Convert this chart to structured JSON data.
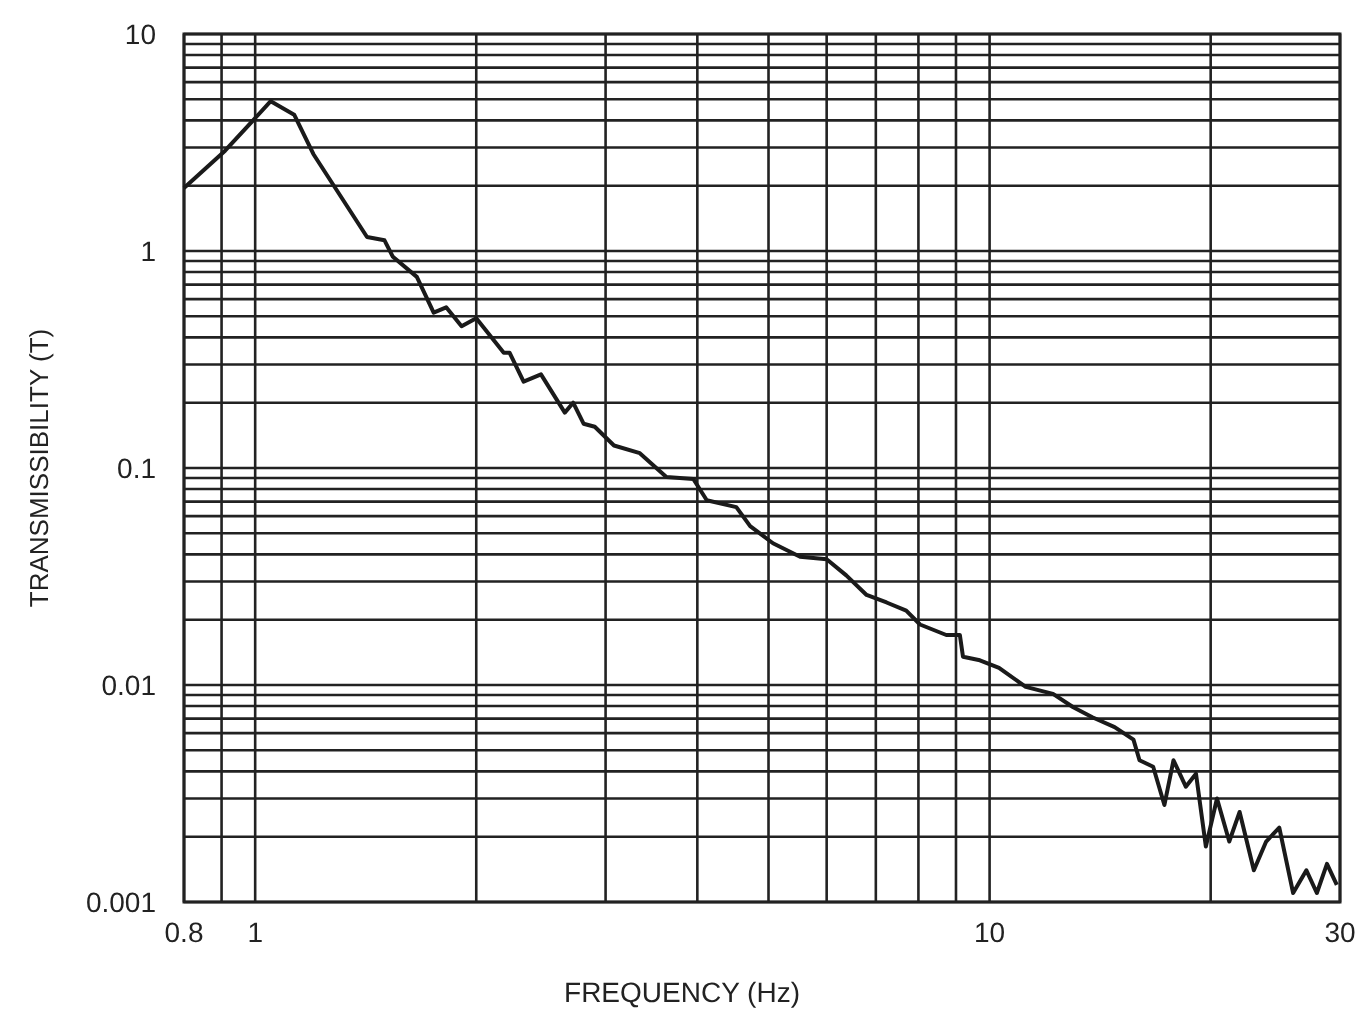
{
  "chart_data": {
    "type": "line",
    "xlabel": "FREQUENCY (Hz)",
    "ylabel": "TRANSMISSIBILITY (T)",
    "log": "xy",
    "grid": true,
    "marker": "none",
    "line_style": "solid",
    "xlim": [
      0.8,
      30
    ],
    "ylim": [
      0.001,
      10
    ],
    "xticks": [
      0.8,
      {
        "value": 0.9,
        "label": null
      },
      1,
      {
        "value": 2,
        "label": null
      },
      {
        "value": 3,
        "label": null
      },
      {
        "value": 4,
        "label": null
      },
      {
        "value": 5,
        "label": null
      },
      {
        "value": 6,
        "label": null
      },
      {
        "value": 7,
        "label": null
      },
      {
        "value": 8,
        "label": null
      },
      {
        "value": 9,
        "label": null
      },
      10,
      {
        "value": 20,
        "label": null
      },
      30
    ],
    "yticks": [
      0.001,
      {
        "value": 0.002,
        "label": null
      },
      {
        "value": 0.003,
        "label": null
      },
      {
        "value": 0.004,
        "label": null
      },
      {
        "value": 0.005,
        "label": null
      },
      {
        "value": 0.006,
        "label": null
      },
      {
        "value": 0.007,
        "label": null
      },
      {
        "value": 0.008,
        "label": null
      },
      {
        "value": 0.009,
        "label": null
      },
      0.01,
      {
        "value": 0.02,
        "label": null
      },
      {
        "value": 0.03,
        "label": null
      },
      {
        "value": 0.04,
        "label": null
      },
      {
        "value": 0.05,
        "label": null
      },
      {
        "value": 0.06,
        "label": null
      },
      {
        "value": 0.07,
        "label": null
      },
      {
        "value": 0.08,
        "label": null
      },
      {
        "value": 0.09,
        "label": null
      },
      0.1,
      {
        "value": 0.2,
        "label": null
      },
      {
        "value": 0.3,
        "label": null
      },
      {
        "value": 0.4,
        "label": null
      },
      {
        "value": 0.5,
        "label": null
      },
      {
        "value": 0.6,
        "label": null
      },
      {
        "value": 0.7,
        "label": null
      },
      {
        "value": 0.8,
        "label": null
      },
      {
        "value": 0.9,
        "label": null
      },
      1,
      {
        "value": 2,
        "label": null
      },
      {
        "value": 3,
        "label": null
      },
      {
        "value": 4,
        "label": null
      },
      {
        "value": 5,
        "label": null
      },
      {
        "value": 6,
        "label": null
      },
      {
        "value": 7,
        "label": null
      },
      {
        "value": 8,
        "label": null
      },
      {
        "value": 9,
        "label": null
      },
      10
    ],
    "series": [
      {
        "color": "#1a1a1a",
        "x": [
          0.8,
          0.91,
          1.05,
          1.13,
          1.2,
          1.42,
          1.5,
          1.54,
          1.66,
          1.75,
          1.82,
          1.91,
          2.0,
          2.18,
          2.22,
          2.32,
          2.45,
          2.64,
          2.71,
          2.8,
          2.9,
          3.08,
          3.34,
          3.63,
          3.95,
          4.12,
          4.52,
          4.72,
          5.07,
          5.52,
          6.0,
          6.38,
          6.8,
          7.24,
          7.7,
          8.04,
          8.73,
          9.11,
          9.2,
          9.7,
          10.3,
          11.2,
          12.2,
          13.0,
          13.8,
          14.8,
          15.7,
          16.0,
          16.7,
          17.3,
          17.8,
          18.5,
          19.1,
          19.7,
          20.4,
          21.2,
          21.9,
          22.9,
          23.8,
          24.8,
          25.9,
          27.0,
          27.9,
          28.8,
          29.7
        ],
        "values": [
          1.95,
          2.9,
          4.9,
          4.25,
          2.8,
          1.16,
          1.12,
          0.94,
          0.76,
          0.52,
          0.55,
          0.45,
          0.49,
          0.34,
          0.34,
          0.25,
          0.27,
          0.18,
          0.2,
          0.16,
          0.155,
          0.127,
          0.117,
          0.091,
          0.089,
          0.071,
          0.066,
          0.054,
          0.045,
          0.039,
          0.038,
          0.032,
          0.026,
          0.024,
          0.022,
          0.019,
          0.017,
          0.017,
          0.0135,
          0.013,
          0.012,
          0.0098,
          0.0091,
          0.0079,
          0.0071,
          0.0064,
          0.0056,
          0.0045,
          0.0042,
          0.0028,
          0.0045,
          0.0034,
          0.0039,
          0.0018,
          0.003,
          0.0019,
          0.0026,
          0.0014,
          0.0019,
          0.0022,
          0.0011,
          0.0014,
          0.0011,
          0.0015,
          0.0012
        ]
      }
    ]
  }
}
